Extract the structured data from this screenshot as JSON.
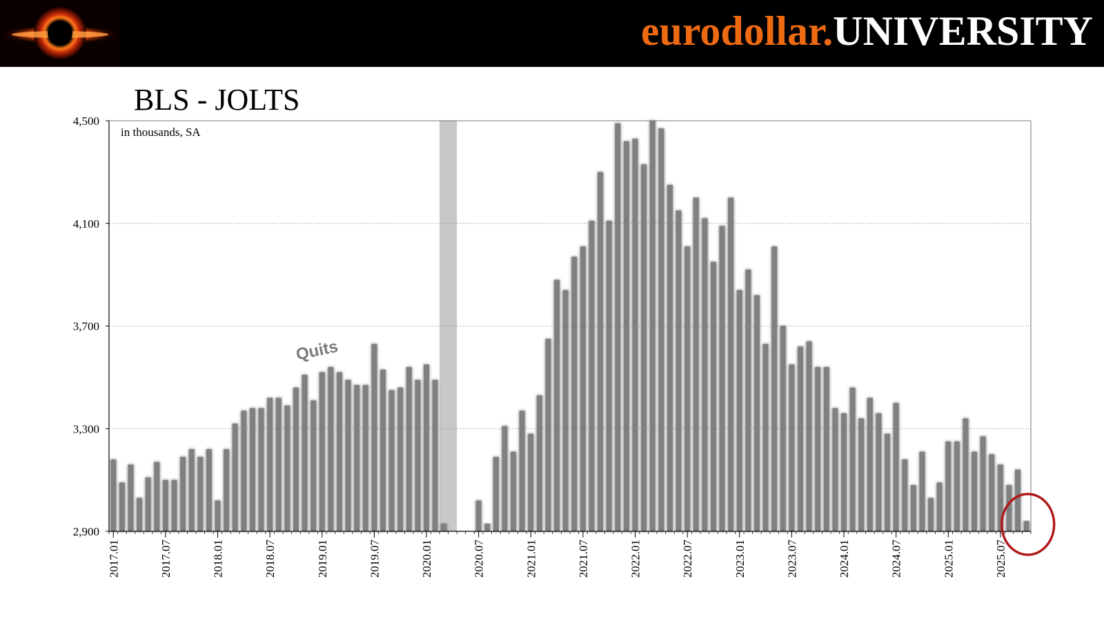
{
  "header": {
    "brand_part1": "eurodollar.",
    "brand_part2": "UNIVERSITY",
    "brand_color": "#ee6a12",
    "logo_icon": "black-hole-logo-icon"
  },
  "chart_data": {
    "type": "bar",
    "title": "BLS - JOLTS",
    "subtitle": "in thousands, SA",
    "annotation": "Quits",
    "xlabel": "",
    "ylabel": "",
    "ylim": [
      2900,
      4500
    ],
    "yticks": [
      "2,900",
      "3,300",
      "3,700",
      "4,100",
      "4,500"
    ],
    "ytick_values": [
      2900,
      3300,
      3700,
      4100,
      4500
    ],
    "grid": true,
    "bar_color": "#808080",
    "recession_band": {
      "start": "2020.03",
      "end": "2020.04",
      "color": "#c8c8c8"
    },
    "highlight_circle_color": "#b01818",
    "x_tick_labels": [
      "2017.01",
      "2017.07",
      "2018.01",
      "2018.07",
      "2019.01",
      "2019.07",
      "2020.01",
      "2020.07",
      "2021.01",
      "2021.07",
      "2022.01",
      "2022.07",
      "2023.01",
      "2023.07",
      "2024.01",
      "2024.07",
      "2025.01",
      "2025.07"
    ],
    "start_month": "2017.01",
    "series": [
      {
        "values": [
          3180,
          3090,
          3160,
          3030,
          3110,
          3170,
          3100,
          3100,
          3190,
          3220,
          3190,
          3220,
          3020,
          3220,
          3320,
          3370,
          3380,
          3380,
          3420,
          3420,
          3390,
          3460,
          3510,
          3410,
          3520,
          3540,
          3520,
          3490,
          3470,
          3470,
          3630,
          3530,
          3450,
          3460,
          3540,
          3490,
          3550,
          3490,
          2930,
          2800,
          2800,
          2800,
          3020,
          2930,
          3190,
          3310,
          3210,
          3370,
          3280,
          3430,
          3650,
          3880,
          3840,
          3970,
          4010,
          4110,
          4300,
          4110,
          4490,
          4420,
          4430,
          4330,
          4500,
          4470,
          4250,
          4150,
          4010,
          4200,
          4120,
          3950,
          4090,
          4200,
          3840,
          3920,
          3820,
          3630,
          4010,
          3700,
          3550,
          3620,
          3640,
          3540,
          3540,
          3380,
          3360,
          3460,
          3340,
          3420,
          3360,
          3280,
          3400,
          3180,
          3080,
          3210,
          3030,
          3090,
          3250,
          3250,
          3340,
          3210,
          3270,
          3200,
          3160,
          3080,
          3140,
          2940
        ]
      }
    ]
  }
}
